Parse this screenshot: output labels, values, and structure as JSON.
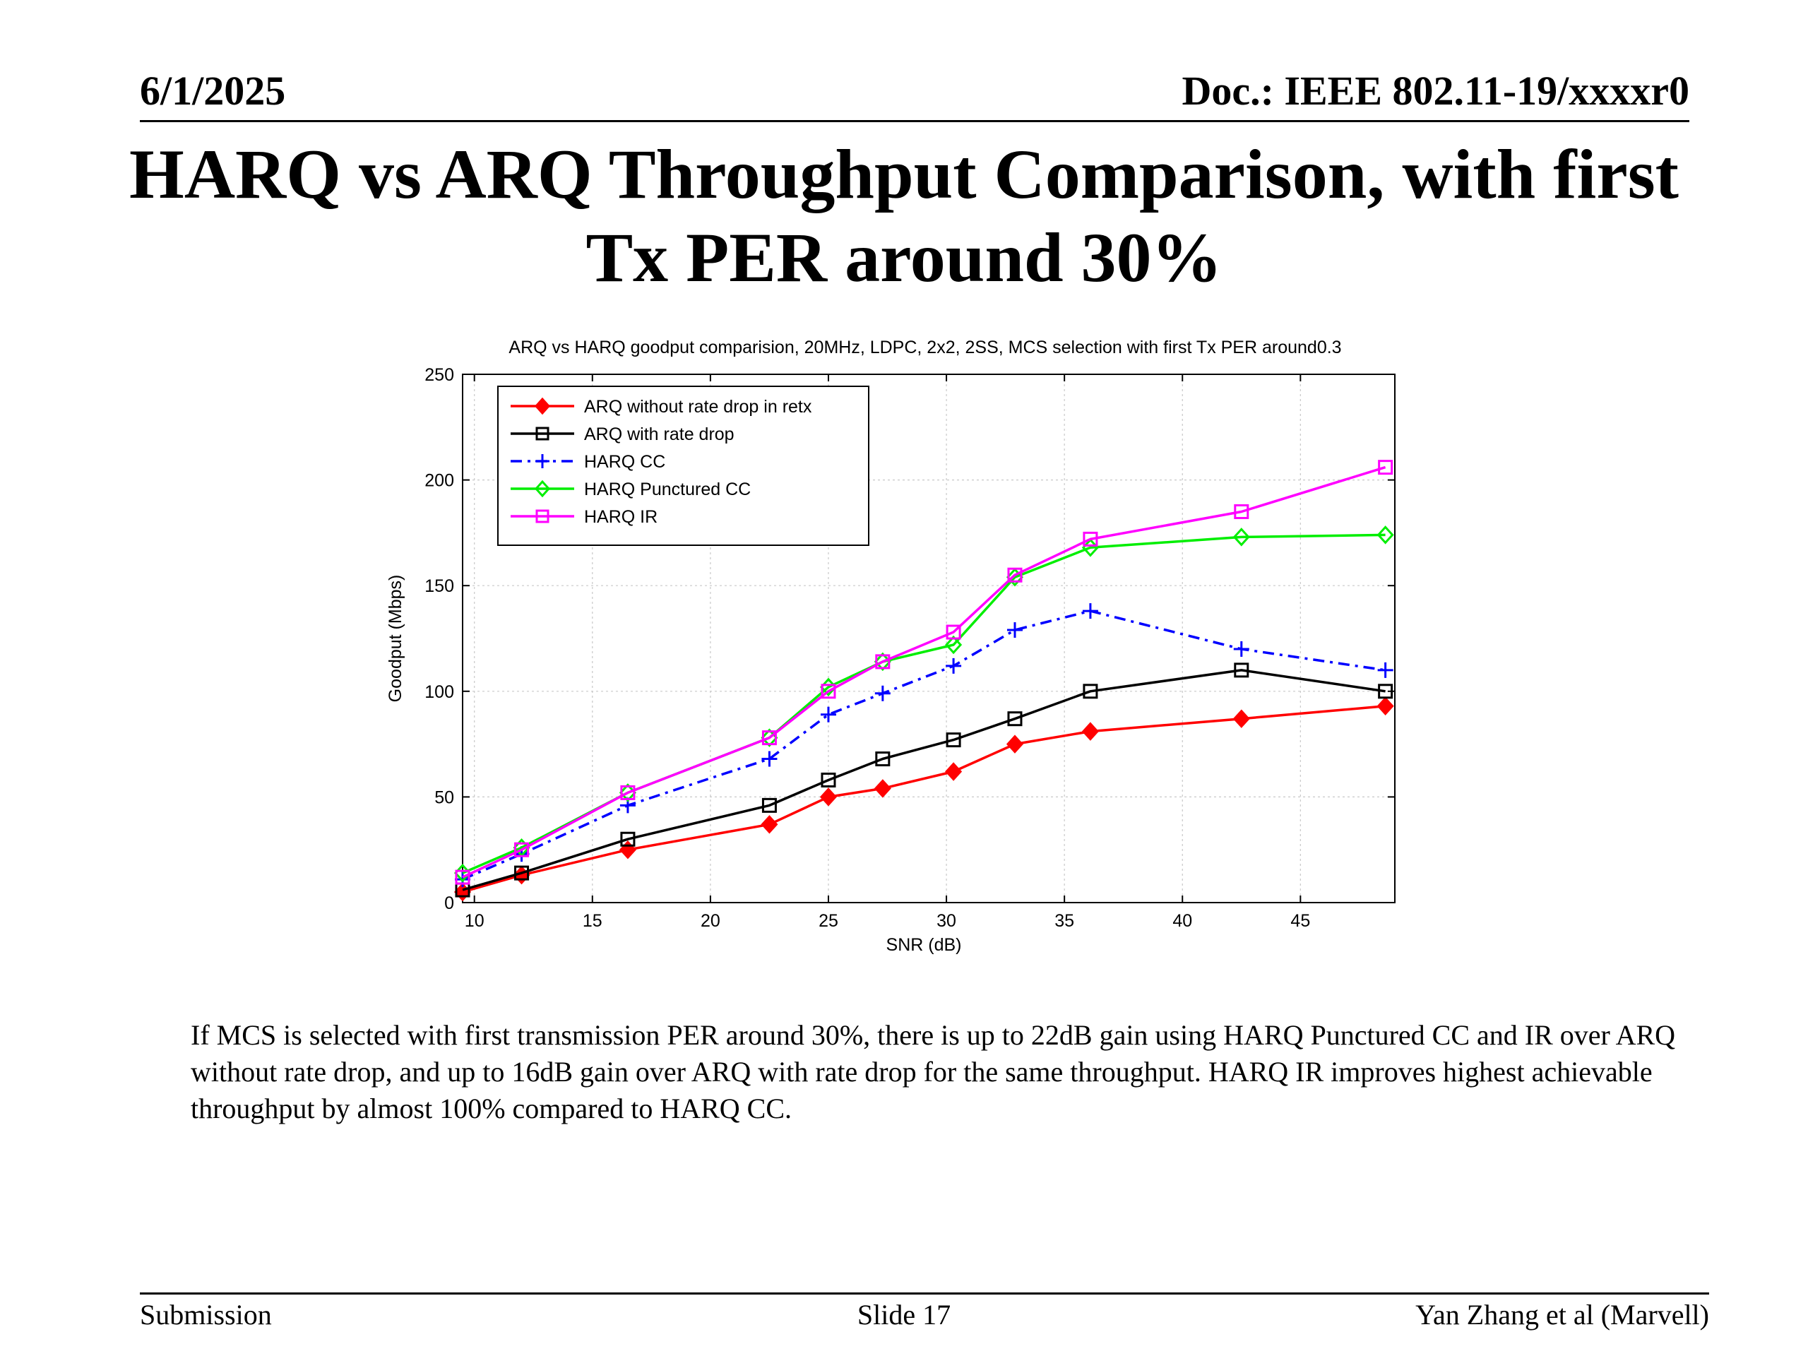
{
  "header": {
    "date": "6/1/2025",
    "doc": "Doc.: IEEE 802.11-19/xxxxr0"
  },
  "slide_title_line1": "HARQ vs ARQ Throughput Comparison, with first",
  "slide_title_line2": "Tx PER around 30%",
  "chart_data": {
    "type": "line",
    "title": "ARQ vs HARQ goodput comparision, 20MHz, LDPC, 2x2, 2SS, MCS selection with first Tx PER around0.3",
    "xlabel": "SNR (dB)",
    "ylabel": "Goodput (Mbps)",
    "xlim": [
      9.5,
      49
    ],
    "ylim": [
      0,
      250
    ],
    "xticks": [
      10,
      15,
      20,
      25,
      30,
      35,
      40,
      45
    ],
    "yticks": [
      0,
      50,
      100,
      150,
      200,
      250
    ],
    "grid": true,
    "legend_position": "top-left",
    "x": [
      9.5,
      12,
      16.5,
      22.5,
      25,
      27.3,
      30.3,
      32.9,
      36.1,
      42.5,
      48.6
    ],
    "series": [
      {
        "name": "ARQ without rate drop in retx",
        "color": "#ff0000",
        "dash": "solid",
        "marker": "diamond-filled",
        "values": [
          5,
          13,
          25,
          37,
          50,
          54,
          62,
          75,
          81,
          87,
          93
        ]
      },
      {
        "name": "ARQ with rate drop",
        "color": "#000000",
        "dash": "solid",
        "marker": "square",
        "values": [
          6,
          14,
          30,
          46,
          58,
          68,
          77,
          87,
          100,
          110,
          100
        ]
      },
      {
        "name": "HARQ CC",
        "color": "#0000ff",
        "dash": "dashdot",
        "marker": "plus",
        "values": [
          11,
          23,
          46,
          68,
          89,
          99,
          112,
          129,
          138,
          120,
          110
        ]
      },
      {
        "name": "HARQ Punctured CC",
        "color": "#00ee00",
        "dash": "solid",
        "marker": "diamond",
        "values": [
          14,
          26,
          52,
          78,
          102,
          114,
          122,
          154,
          168,
          173,
          174
        ]
      },
      {
        "name": "HARQ IR",
        "color": "#ff00ff",
        "dash": "solid",
        "marker": "square",
        "values": [
          12,
          25,
          52,
          78,
          100,
          114,
          128,
          155,
          172,
          185,
          206
        ]
      }
    ]
  },
  "body_text": "If MCS is selected with first transmission PER around 30%, there is up to 22dB gain using HARQ Punctured CC and IR over ARQ without rate drop, and up to 16dB gain over ARQ with rate drop for the same throughput. HARQ IR improves highest achievable throughput by almost 100% compared to HARQ CC.",
  "footer": {
    "left": "Submission",
    "center": "Slide 17",
    "right": "Yan Zhang et al (Marvell)"
  }
}
